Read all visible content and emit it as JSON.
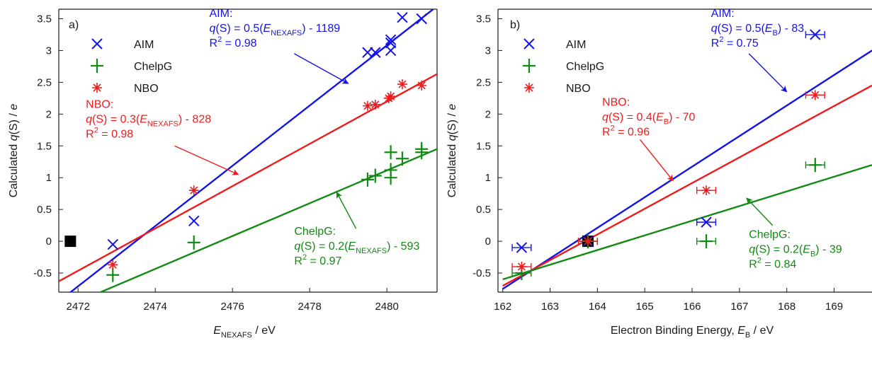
{
  "colors": {
    "AIM": "#1414e6",
    "ChelpG": "#138a13",
    "NBO": "#ee1c1c",
    "reference": "#000000",
    "axis": "#1a1a1a"
  },
  "chart_data": [
    {
      "type": "scatter",
      "panel_label": "a)",
      "xlabel_main": "E",
      "xlabel_sub": "NEXAFS",
      "xlabel_unit": " / eV",
      "ylabel_pre": "Calculated ",
      "ylabel_italic": "q",
      "ylabel_mid": "(S) / ",
      "ylabel_unit": "e",
      "xlim": [
        2471.5,
        2481.3
      ],
      "ylim": [
        -0.8,
        3.65
      ],
      "xticks": [
        2472,
        2474,
        2476,
        2478,
        2480
      ],
      "yticks": [
        -0.5,
        0,
        0.5,
        1,
        1.5,
        2,
        2.5,
        3,
        3.5
      ],
      "ytick_labels": [
        "-0.5",
        "0",
        "0.5",
        "1",
        "1.5",
        "2",
        "2.5",
        "3",
        "3.5"
      ],
      "legend": [
        "AIM",
        "ChelpG",
        "NBO"
      ],
      "legend_position": "top-left",
      "series": [
        {
          "name": "AIM",
          "marker": "x",
          "x": [
            2472.9,
            2475.0,
            2479.5,
            2479.7,
            2480.1,
            2480.1,
            2480.1,
            2480.4,
            2480.9
          ],
          "y": [
            -0.05,
            0.32,
            2.97,
            2.97,
            3.0,
            3.12,
            3.17,
            3.52,
            3.5
          ]
        },
        {
          "name": "ChelpG",
          "marker": "plus",
          "x": [
            2472.9,
            2475.0,
            2479.5,
            2479.7,
            2480.1,
            2480.1,
            2480.1,
            2480.4,
            2480.9,
            2480.9
          ],
          "y": [
            -0.53,
            -0.02,
            0.97,
            1.03,
            1.0,
            1.12,
            1.4,
            1.3,
            1.4,
            1.45
          ]
        },
        {
          "name": "NBO",
          "marker": "asterisk",
          "x": [
            2472.9,
            2475.0,
            2479.5,
            2479.7,
            2480.05,
            2480.1,
            2480.4,
            2480.9
          ],
          "y": [
            -0.37,
            0.8,
            2.13,
            2.15,
            2.25,
            2.28,
            2.47,
            2.45
          ]
        }
      ],
      "reference_points": [
        {
          "x": 2471.8,
          "y": 0
        }
      ],
      "fits": [
        {
          "name": "AIM",
          "x": [
            2471.7,
            2481.2
          ],
          "y": [
            -0.85,
            3.65
          ]
        },
        {
          "name": "NBO",
          "x": [
            2471.5,
            2481.3
          ],
          "y": [
            -0.63,
            2.63
          ]
        },
        {
          "name": "ChelpG",
          "x": [
            2471.5,
            2481.3
          ],
          "y": [
            -1.08,
            1.45
          ]
        }
      ],
      "annotations": [
        {
          "series": "AIM",
          "lines": [
            [
              {
                "t": "AIM:"
              }
            ],
            [
              {
                "t": "q",
                "i": 1
              },
              {
                "t": "(S) = 0.5("
              },
              {
                "t": "E",
                "i": 1
              },
              {
                "t": "NEXAFS",
                "sub": 1
              },
              {
                "t": ") - 1189"
              }
            ],
            [
              {
                "t": "R"
              },
              {
                "t": "2",
                "sup": 1
              },
              {
                "t": " = 0.98"
              }
            ]
          ],
          "text_at": [
            2475.4,
            3.53
          ],
          "arrow_from": [
            2477.6,
            2.95
          ],
          "arrow_to": [
            2479.0,
            2.48
          ]
        },
        {
          "series": "NBO",
          "lines": [
            [
              {
                "t": "NBO:"
              }
            ],
            [
              {
                "t": "q",
                "i": 1
              },
              {
                "t": "(S) = 0.3("
              },
              {
                "t": "E",
                "i": 1
              },
              {
                "t": "NEXAFS",
                "sub": 1
              },
              {
                "t": ") - 828"
              }
            ],
            [
              {
                "t": "R"
              },
              {
                "t": "2",
                "sup": 1
              },
              {
                "t": " = 0.98"
              }
            ]
          ],
          "text_at": [
            2472.2,
            2.1
          ],
          "arrow_from": [
            2474.5,
            1.5
          ],
          "arrow_to": [
            2476.15,
            1.05
          ]
        },
        {
          "series": "ChelpG",
          "lines": [
            [
              {
                "t": "ChelpG:"
              }
            ],
            [
              {
                "t": "q",
                "i": 1
              },
              {
                "t": "(S) = 0.2("
              },
              {
                "t": "E",
                "i": 1
              },
              {
                "t": "NEXAFS",
                "sub": 1
              },
              {
                "t": ") - 593"
              }
            ],
            [
              {
                "t": "R"
              },
              {
                "t": "2",
                "sup": 1
              },
              {
                "t": " = 0.97"
              }
            ]
          ],
          "text_at": [
            2477.6,
            0.1
          ],
          "arrow_from": [
            2479.2,
            0.2
          ],
          "arrow_to": [
            2478.7,
            0.77
          ]
        }
      ]
    },
    {
      "type": "scatter",
      "panel_label": "b)",
      "xlabel_pre": "Electron Binding Energy, ",
      "xlabel_main": "E",
      "xlabel_sub": "B",
      "xlabel_unit": " / eV",
      "ylabel_pre": "Calculated ",
      "ylabel_italic": "q",
      "ylabel_mid": "(S) / ",
      "ylabel_unit": "e",
      "xlim": [
        161.9,
        169.8
      ],
      "ylim": [
        -0.8,
        3.65
      ],
      "xticks": [
        162,
        163,
        164,
        165,
        166,
        167,
        168,
        169
      ],
      "yticks": [
        -0.5,
        0,
        0.5,
        1,
        1.5,
        2,
        2.5,
        3,
        3.5
      ],
      "ytick_labels": [
        "-0.5",
        "0",
        "0.5",
        "1",
        "1.5",
        "2",
        "2.5",
        "3",
        "3.5"
      ],
      "legend": [
        "AIM",
        "ChelpG",
        "NBO"
      ],
      "legend_position": "top-left",
      "series": [
        {
          "name": "AIM",
          "marker": "x",
          "x": [
            162.4,
            163.8,
            166.3,
            168.6
          ],
          "y": [
            -0.1,
            0.0,
            0.3,
            3.25
          ],
          "xerr": [
            0.2,
            0.2,
            0.2,
            0.2
          ]
        },
        {
          "name": "ChelpG",
          "marker": "plus",
          "x": [
            162.4,
            163.8,
            166.3,
            168.6
          ],
          "y": [
            -0.5,
            0.0,
            0.0,
            1.2
          ],
          "xerr": [
            0.2,
            0.2,
            0.2,
            0.2
          ]
        },
        {
          "name": "NBO",
          "marker": "asterisk",
          "x": [
            162.4,
            163.8,
            166.3,
            168.6
          ],
          "y": [
            -0.4,
            0.0,
            0.8,
            2.3
          ],
          "xerr": [
            0.2,
            0.2,
            0.2,
            0.2
          ]
        }
      ],
      "reference_points": [
        {
          "x": 163.8,
          "y": 0
        }
      ],
      "fits": [
        {
          "name": "AIM",
          "x": [
            162.0,
            169.8
          ],
          "y": [
            -0.75,
            3.0
          ]
        },
        {
          "name": "NBO",
          "x": [
            162.0,
            169.8
          ],
          "y": [
            -0.7,
            2.45
          ]
        },
        {
          "name": "ChelpG",
          "x": [
            162.0,
            169.8
          ],
          "y": [
            -0.6,
            1.2
          ]
        }
      ],
      "annotations": [
        {
          "series": "AIM",
          "lines": [
            [
              {
                "t": "AIM:"
              }
            ],
            [
              {
                "t": "q",
                "i": 1
              },
              {
                "t": "(S) = 0.5("
              },
              {
                "t": "E",
                "i": 1
              },
              {
                "t": "B",
                "sub": 1
              },
              {
                "t": ") - 83"
              }
            ],
            [
              {
                "t": "R"
              },
              {
                "t": "2",
                "sup": 1
              },
              {
                "t": " = 0.75"
              }
            ]
          ],
          "text_at": [
            166.4,
            3.53
          ],
          "arrow_from": [
            167.2,
            2.95
          ],
          "arrow_to": [
            168.0,
            2.35
          ]
        },
        {
          "series": "NBO",
          "lines": [
            [
              {
                "t": "NBO:"
              }
            ],
            [
              {
                "t": "q",
                "i": 1
              },
              {
                "t": "(S) = 0.4("
              },
              {
                "t": "E",
                "i": 1
              },
              {
                "t": "B",
                "sub": 1
              },
              {
                "t": ") - 70"
              }
            ],
            [
              {
                "t": "R"
              },
              {
                "t": "2",
                "sup": 1
              },
              {
                "t": " = 0.96"
              }
            ]
          ],
          "text_at": [
            164.1,
            2.13
          ],
          "arrow_from": [
            164.9,
            1.6
          ],
          "arrow_to": [
            165.6,
            0.95
          ]
        },
        {
          "series": "ChelpG",
          "lines": [
            [
              {
                "t": "ChelpG:"
              }
            ],
            [
              {
                "t": "q",
                "i": 1
              },
              {
                "t": "(S) = 0.2("
              },
              {
                "t": "E",
                "i": 1
              },
              {
                "t": "B",
                "sub": 1
              },
              {
                "t": ") - 39"
              }
            ],
            [
              {
                "t": "R"
              },
              {
                "t": "2",
                "sup": 1
              },
              {
                "t": " = 0.84"
              }
            ]
          ],
          "text_at": [
            167.2,
            0.05
          ],
          "arrow_from": [
            167.7,
            0.25
          ],
          "arrow_to": [
            167.15,
            0.68
          ]
        }
      ]
    }
  ]
}
